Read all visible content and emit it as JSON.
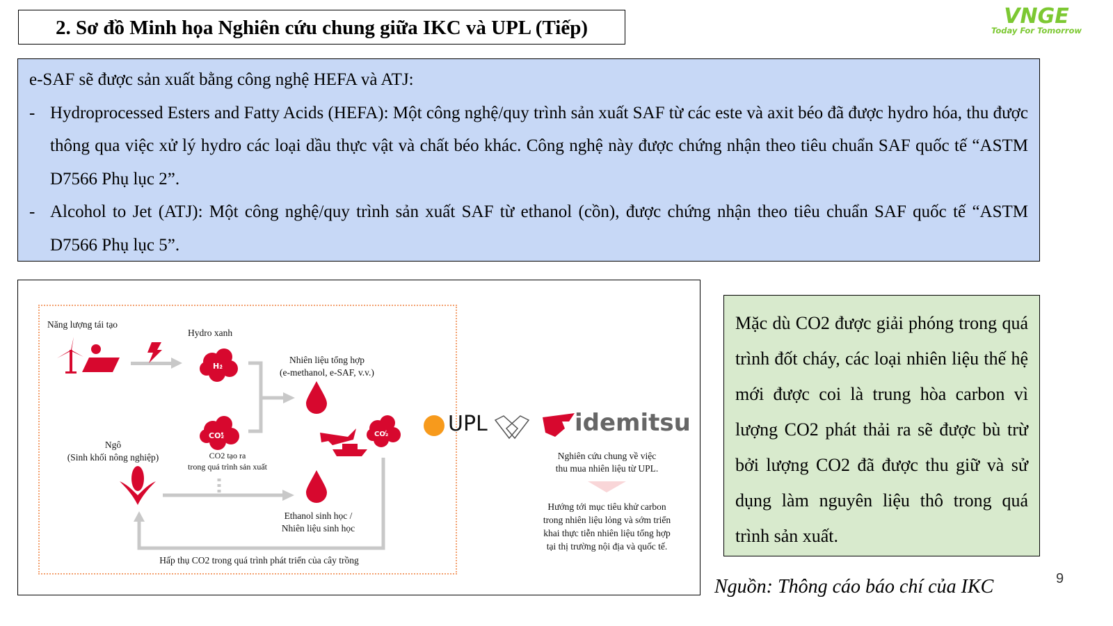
{
  "title": "2. Sơ đồ Minh họa Nghiên cứu chung giữa IKC và UPL (Tiếp)",
  "logo": {
    "brand": "VNGE",
    "tagline": "Today For Tomorrow",
    "color": "#7cc832"
  },
  "intro": {
    "heading": "e-SAF sẽ được sản xuất bằng công nghệ HEFA và ATJ:",
    "bullets": [
      "Hydroprocessed Esters and Fatty Acids (HEFA): Một công nghệ/quy trình sản xuất SAF từ các este và axit béo đã được hydro hóa, thu được thông qua việc xử lý hydro các loại dầu thực vật và chất béo khác. Công nghệ này được chứng nhận theo tiêu chuẩn SAF quốc tế “ASTM D7566 Phụ lục 2”.",
      "Alcohol to Jet (ATJ): Một công nghệ/quy trình sản xuất SAF từ ethanol (cồn), được chứng nhận theo tiêu chuẩn SAF quốc tế “ASTM D7566 Phụ lục 5”."
    ],
    "bg": "#c7d8f6"
  },
  "diagram": {
    "renewable": "Năng lượng tái tạo",
    "green_hydrogen": "Hydro xanh",
    "h2": "H₂",
    "co2": "CO₂",
    "synthetic_fuel": [
      "Nhiên liệu tổng hợp",
      "(e-methanol, e-SAF, v.v.)"
    ],
    "corn": [
      "Ngô",
      "(Sinh khối nông nghiệp)"
    ],
    "co2_produced": [
      "CO2 tạo ra",
      "trong quá trình sản xuất"
    ],
    "bioethanol": [
      "Ethanol sinh học /",
      "Nhiên liệu sinh học"
    ],
    "absorb": "Hấp thụ CO2 trong quá trình phát triển của cây trồng",
    "upl": "UPL",
    "idemitsu": "idemitsu",
    "joint_study": [
      "Nghiên cứu chung về việc",
      "thu mua nhiên liệu từ UPL."
    ],
    "goal": [
      "Hướng tới mục tiêu khử carbon",
      "trong nhiên liệu lỏng và sớm triển",
      "khai thực tiễn nhiên liệu tổng hợp",
      "tại thị trường nội địa và quốc tế."
    ],
    "accent": "#d7082e"
  },
  "note": {
    "text": "Mặc dù CO2 được giải phóng trong quá trình đốt cháy, các loại nhiên liệu thế hệ mới được coi là trung hòa carbon vì lượng CO2 phát thải ra sẽ được bù trừ bởi lượng CO2 đã được thu giữ và sử dụng làm nguyên liệu thô trong quá trình sản xuất.",
    "bg": "#d8eacd"
  },
  "source": "Nguồn: Thông cáo báo chí của IKC",
  "page_number": "9"
}
